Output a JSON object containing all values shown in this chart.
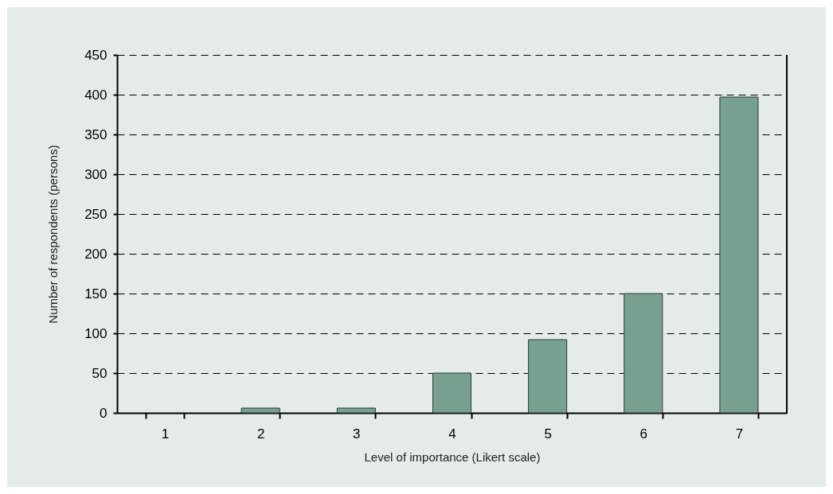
{
  "chart_data": {
    "type": "bar",
    "xlabel": "Level of importance (Likert scale)",
    "ylabel": "Number of respondents (persons)",
    "categories": [
      "1",
      "2",
      "3",
      "4",
      "5",
      "6",
      "7"
    ],
    "values": [
      0,
      6,
      6,
      50,
      92,
      150,
      397
    ],
    "color": "#78a090",
    "ylim": [
      0,
      450
    ],
    "yticks": [
      0,
      50,
      100,
      150,
      200,
      250,
      300,
      350,
      400,
      450
    ],
    "grid": "y"
  }
}
